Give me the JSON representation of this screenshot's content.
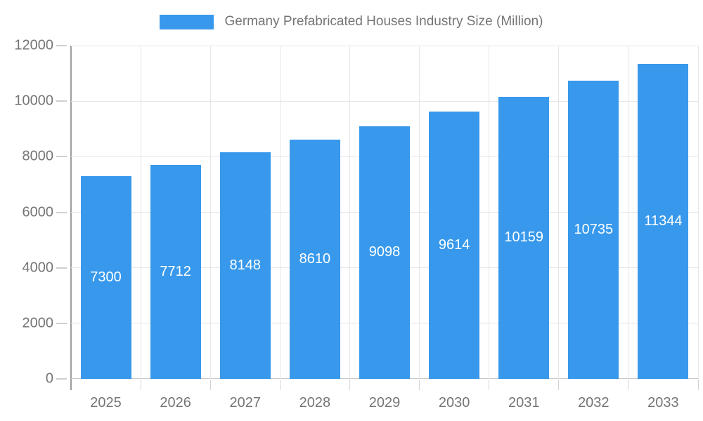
{
  "legend": {
    "label": "Germany Prefabricated Houses Industry Size (Million)"
  },
  "chart_data": {
    "type": "bar",
    "title": "Germany Prefabricated Houses Industry Size (Million)",
    "categories": [
      "2025",
      "2026",
      "2027",
      "2028",
      "2029",
      "2030",
      "2031",
      "2032",
      "2033"
    ],
    "values": [
      7300,
      7712,
      8148,
      8610,
      9098,
      9614,
      10159,
      10735,
      11344
    ],
    "xlabel": "",
    "ylabel": "",
    "ylim": [
      0,
      12000
    ],
    "yticks": [
      0,
      2000,
      4000,
      6000,
      8000,
      10000,
      12000
    ],
    "grid": true,
    "legend_position": "top",
    "value_labels_shown": true
  },
  "colors": {
    "bar": "#3899ec",
    "value_label": "#ffffff",
    "grid_line": "#e6e6e6",
    "zero_line": "#c9c9c9",
    "axis_line": "#9d9d9d",
    "tick_mark": "#cfcfcf",
    "text": "#757575",
    "background": "#ffffff"
  }
}
